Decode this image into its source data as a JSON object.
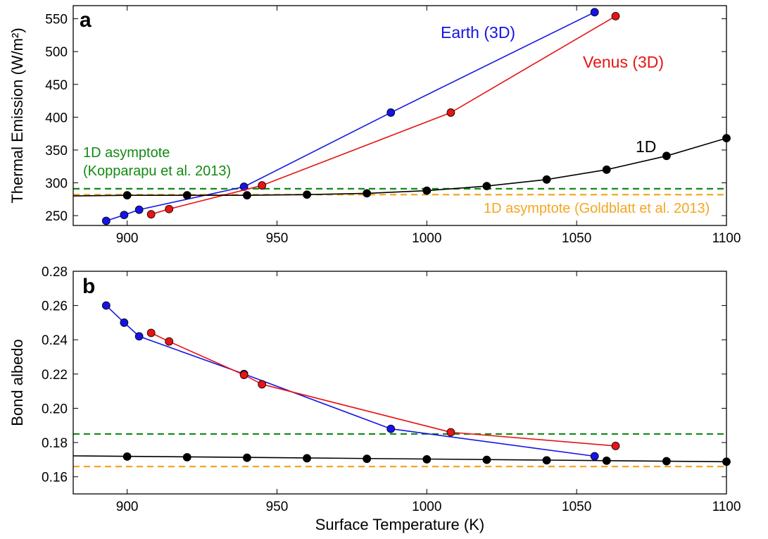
{
  "chart_data": [
    {
      "panel": "a",
      "type": "line",
      "ylabel": "Thermal Emission (W/m²)",
      "xlabel": "",
      "xlim": [
        882,
        1100
      ],
      "ylim": [
        235,
        570
      ],
      "xticks": [
        900,
        950,
        1000,
        1050,
        1100
      ],
      "yticks": [
        250,
        300,
        350,
        400,
        450,
        500,
        550
      ],
      "series": [
        {
          "name": "Earth (3D)",
          "color": "#1414e6",
          "marker": "circle",
          "x": [
            893,
            899,
            904,
            939,
            988,
            1056
          ],
          "y": [
            242,
            251,
            259,
            294,
            407,
            560
          ]
        },
        {
          "name": "Venus (3D)",
          "color": "#e61414",
          "marker": "circle",
          "x": [
            908,
            914,
            945,
            1008,
            1063
          ],
          "y": [
            252,
            260,
            296,
            407,
            554
          ]
        },
        {
          "name": "1D",
          "color": "#000000",
          "marker": "circle",
          "x": [
            900,
            920,
            940,
            960,
            980,
            1000,
            1020,
            1040,
            1060,
            1080,
            1100
          ],
          "y": [
            281,
            281,
            281,
            282,
            284,
            288,
            295,
            305,
            320,
            341,
            368
          ],
          "line_x": [
            882,
            900,
            920,
            940,
            960,
            980,
            1000,
            1020,
            1040,
            1060,
            1080,
            1100
          ],
          "line_y": [
            280,
            281,
            281,
            281,
            282,
            284,
            288,
            295,
            305,
            320,
            341,
            368
          ]
        }
      ],
      "hlines": [
        {
          "name": "1D asymptote (Kopparapu et al. 2013)",
          "y": 291,
          "color": "#138a13",
          "style": "dashed"
        },
        {
          "name": "1D asymptote (Goldblatt et al. 2013)",
          "y": 282,
          "color": "#f5a623",
          "style": "dashed"
        }
      ],
      "annotations": {
        "earth": "Earth (3D)",
        "venus": "Venus (3D)",
        "oned": "1D",
        "kopparapu_line1": "1D asymptote",
        "kopparapu_line2": "(Kopparapu et al. 2013)",
        "goldblatt": "1D asymptote (Goldblatt et al. 2013)"
      }
    },
    {
      "panel": "b",
      "type": "line",
      "ylabel": "Bond albedo",
      "xlabel": "Surface Temperature (K)",
      "xlim": [
        882,
        1100
      ],
      "ylim": [
        0.15,
        0.28
      ],
      "xticks": [
        900,
        950,
        1000,
        1050,
        1100
      ],
      "yticks": [
        0.16,
        0.18,
        0.2,
        0.22,
        0.24,
        0.26,
        0.28
      ],
      "ytick_labels": [
        "0.16",
        "0.18",
        "0.20",
        "0.22",
        "0.24",
        "0.26",
        "0.28"
      ],
      "series": [
        {
          "name": "Earth (3D)",
          "color": "#1414e6",
          "marker": "circle",
          "x": [
            893,
            899,
            904,
            939,
            988,
            1056
          ],
          "y": [
            0.26,
            0.25,
            0.242,
            0.22,
            0.188,
            0.172
          ]
        },
        {
          "name": "Venus (3D)",
          "color": "#e61414",
          "marker": "circle",
          "x": [
            908,
            914,
            939,
            945,
            1008,
            1063
          ],
          "y": [
            0.244,
            0.239,
            0.2195,
            0.214,
            0.186,
            0.178
          ]
        },
        {
          "name": "1D",
          "color": "#000000",
          "marker": "circle",
          "x": [
            900,
            920,
            940,
            960,
            980,
            1000,
            1020,
            1040,
            1060,
            1080,
            1100
          ],
          "y": [
            0.1718,
            0.1714,
            0.1711,
            0.1708,
            0.1705,
            0.1702,
            0.1699,
            0.1696,
            0.1694,
            0.1691,
            0.1688
          ],
          "line_x": [
            882,
            1100
          ],
          "line_y": [
            0.1722,
            0.1688
          ]
        }
      ],
      "hlines": [
        {
          "name": "1D asymptote (Kopparapu et al. 2013)",
          "y": 0.185,
          "color": "#138a13",
          "style": "dashed"
        },
        {
          "name": "1D asymptote (Goldblatt et al. 2013)",
          "y": 0.166,
          "color": "#f5a623",
          "style": "dashed"
        }
      ]
    }
  ]
}
